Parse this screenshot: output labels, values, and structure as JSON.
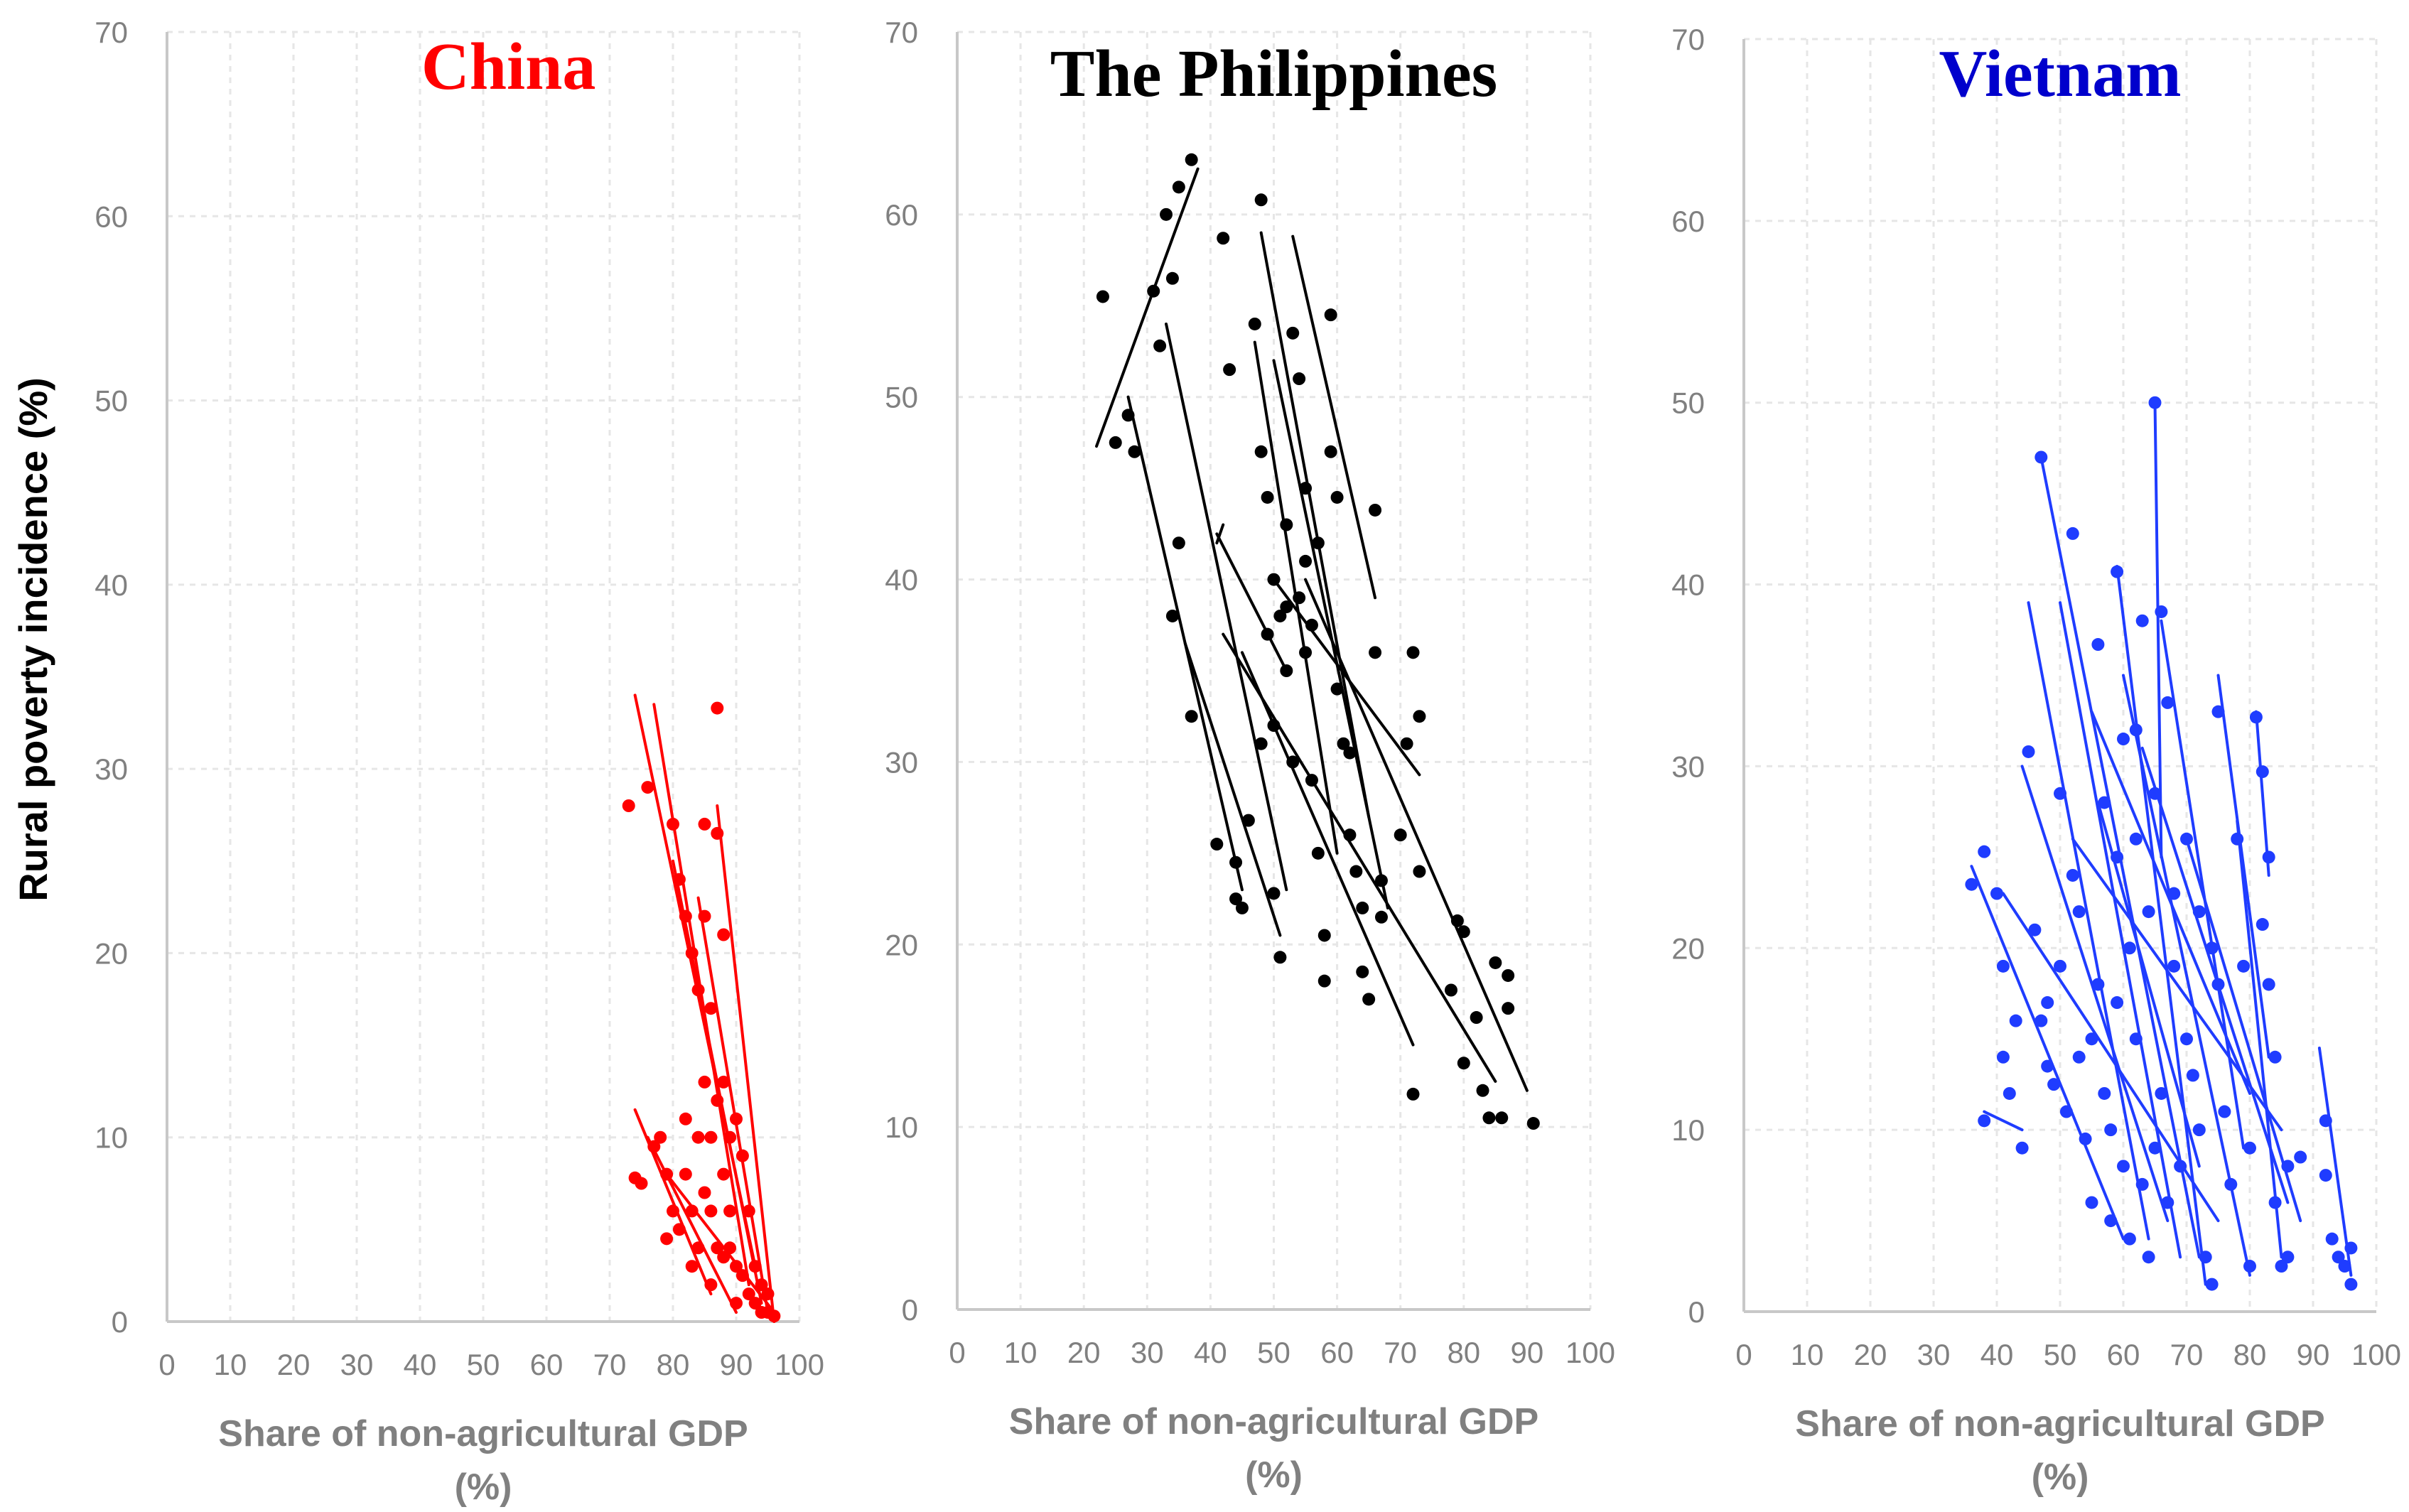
{
  "chart_data": [
    {
      "type": "scatter",
      "title": "China",
      "title_color": "#ff0000",
      "series_color": "#ff0000",
      "xlabel_line1": "Share of non-agricultural GDP",
      "xlabel_line2": "(%)",
      "ylabel": "Rural poverty incidence (%)",
      "xlim": [
        0,
        100
      ],
      "ylim": [
        0,
        70
      ],
      "x_ticks": [
        "0",
        "10",
        "20",
        "30",
        "40",
        "50",
        "60",
        "70",
        "80",
        "90",
        "100"
      ],
      "y_ticks": [
        "0",
        "10",
        "20",
        "30",
        "40",
        "50",
        "60",
        "70"
      ],
      "grid": true,
      "points": [
        [
          73,
          28
        ],
        [
          74,
          7.8
        ],
        [
          75,
          7.5
        ],
        [
          76,
          29
        ],
        [
          77,
          9.5
        ],
        [
          78,
          10
        ],
        [
          79,
          8
        ],
        [
          79,
          4.5
        ],
        [
          80,
          6
        ],
        [
          80,
          27
        ],
        [
          81,
          24
        ],
        [
          81,
          5
        ],
        [
          82,
          22
        ],
        [
          82,
          8
        ],
        [
          83,
          6
        ],
        [
          83,
          20
        ],
        [
          84,
          4
        ],
        [
          84,
          18
        ],
        [
          85,
          22
        ],
        [
          85,
          27
        ],
        [
          85,
          13
        ],
        [
          86,
          17
        ],
        [
          86,
          10
        ],
        [
          86,
          2
        ],
        [
          87,
          12
        ],
        [
          87,
          26.5
        ],
        [
          87,
          33.3
        ],
        [
          88,
          21
        ],
        [
          88,
          13
        ],
        [
          88,
          8
        ],
        [
          89,
          10
        ],
        [
          89,
          6
        ],
        [
          89,
          4
        ],
        [
          90,
          11
        ],
        [
          90,
          3
        ],
        [
          91,
          9
        ],
        [
          91,
          2.5
        ],
        [
          92,
          6
        ],
        [
          92,
          1.5
        ],
        [
          93,
          3
        ],
        [
          93,
          1
        ],
        [
          94,
          2
        ],
        [
          94,
          0.5
        ],
        [
          95,
          1.5
        ],
        [
          95,
          0.5
        ],
        [
          96,
          0.3
        ],
        [
          84,
          10
        ],
        [
          85,
          7
        ],
        [
          86,
          6
        ],
        [
          87,
          4
        ],
        [
          82,
          11
        ],
        [
          83,
          3
        ],
        [
          88,
          3.5
        ],
        [
          90,
          1
        ]
      ],
      "lines": [
        [
          [
            74,
            34
          ],
          [
            93,
            3
          ]
        ],
        [
          [
            77,
            33.5
          ],
          [
            92,
            2
          ]
        ],
        [
          [
            87,
            28
          ],
          [
            96,
            0
          ]
        ],
        [
          [
            74,
            11.5
          ],
          [
            86,
            1.5
          ]
        ],
        [
          [
            76,
            10
          ],
          [
            90,
            0.5
          ]
        ],
        [
          [
            80,
            25
          ],
          [
            94,
            1
          ]
        ],
        [
          [
            84,
            23
          ],
          [
            95,
            0.5
          ]
        ],
        [
          [
            79,
            8
          ],
          [
            96,
            0.5
          ]
        ]
      ]
    },
    {
      "type": "scatter",
      "title": "The Philippines",
      "title_color": "#000000",
      "series_color": "#000000",
      "xlabel_line1": "Share of non-agricultural GDP",
      "xlabel_line2": "(%)",
      "xlim": [
        0,
        100
      ],
      "ylim": [
        0,
        70
      ],
      "x_ticks": [
        "0",
        "10",
        "20",
        "30",
        "40",
        "50",
        "60",
        "70",
        "80",
        "90",
        "100"
      ],
      "y_ticks": [
        "0",
        "10",
        "20",
        "30",
        "40",
        "50",
        "60",
        "70"
      ],
      "grid": true,
      "points": [
        [
          23,
          55.5
        ],
        [
          25,
          47.5
        ],
        [
          27,
          49
        ],
        [
          28,
          47
        ],
        [
          31,
          55.8
        ],
        [
          32,
          52.8
        ],
        [
          33,
          60
        ],
        [
          34,
          56.5
        ],
        [
          35,
          61.5
        ],
        [
          37,
          63
        ],
        [
          35,
          42
        ],
        [
          34,
          38
        ],
        [
          37,
          32.5
        ],
        [
          41,
          25.5
        ],
        [
          42,
          58.7
        ],
        [
          43,
          51.5
        ],
        [
          44,
          24.5
        ],
        [
          44,
          22.5
        ],
        [
          45,
          22
        ],
        [
          46,
          26.8
        ],
        [
          47,
          54
        ],
        [
          48,
          60.8
        ],
        [
          48,
          47
        ],
        [
          49,
          44.5
        ],
        [
          49,
          37
        ],
        [
          50,
          40
        ],
        [
          50,
          22.8
        ],
        [
          51,
          19.3
        ],
        [
          51,
          38
        ],
        [
          52,
          43
        ],
        [
          52,
          35
        ],
        [
          53,
          30
        ],
        [
          53,
          53.5
        ],
        [
          54,
          51
        ],
        [
          55,
          41
        ],
        [
          55,
          36
        ],
        [
          56,
          29
        ],
        [
          57,
          42
        ],
        [
          57,
          25
        ],
        [
          58,
          20.5
        ],
        [
          58,
          18
        ],
        [
          59,
          54.5
        ],
        [
          59,
          47
        ],
        [
          60,
          44.5
        ],
        [
          60,
          34
        ],
        [
          61,
          31
        ],
        [
          62,
          30.5
        ],
        [
          62,
          26
        ],
        [
          63,
          24
        ],
        [
          64,
          22
        ],
        [
          64,
          18.5
        ],
        [
          65,
          17
        ],
        [
          66,
          43.8
        ],
        [
          66,
          36
        ],
        [
          67,
          23.5
        ],
        [
          67,
          21.5
        ],
        [
          70,
          26
        ],
        [
          71,
          31
        ],
        [
          72,
          36
        ],
        [
          72,
          11.8
        ],
        [
          73,
          32.5
        ],
        [
          73,
          24
        ],
        [
          78,
          17.5
        ],
        [
          79,
          21.3
        ],
        [
          80,
          20.7
        ],
        [
          80,
          13.5
        ],
        [
          82,
          16
        ],
        [
          83,
          12
        ],
        [
          84,
          10.5
        ],
        [
          85,
          19
        ],
        [
          86,
          10.5
        ],
        [
          87,
          18.3
        ],
        [
          87,
          16.5
        ],
        [
          91,
          10.2
        ],
        [
          48,
          31
        ],
        [
          50,
          32
        ],
        [
          52,
          38.5
        ],
        [
          54,
          39
        ],
        [
          55,
          45
        ],
        [
          56,
          37.5
        ]
      ],
      "lines": [
        [
          [
            22,
            47.3
          ],
          [
            38,
            62.5
          ]
        ],
        [
          [
            27,
            50
          ],
          [
            45,
            23
          ]
        ],
        [
          [
            33,
            54
          ],
          [
            52,
            23
          ]
        ],
        [
          [
            36,
            36.5
          ],
          [
            51,
            20.5
          ]
        ],
        [
          [
            41,
            42.5
          ],
          [
            52,
            35
          ]
        ],
        [
          [
            48,
            59
          ],
          [
            65,
            27
          ]
        ],
        [
          [
            53,
            58.8
          ],
          [
            66,
            39
          ]
        ],
        [
          [
            45,
            36
          ],
          [
            72,
            14.5
          ]
        ],
        [
          [
            55,
            40
          ],
          [
            90,
            12
          ]
        ],
        [
          [
            50,
            40
          ],
          [
            73,
            29.3
          ]
        ],
        [
          [
            42,
            37
          ],
          [
            85,
            12.5
          ]
        ],
        [
          [
            47,
            53
          ],
          [
            60,
            25
          ]
        ],
        [
          [
            41,
            42
          ],
          [
            42,
            43
          ]
        ],
        [
          [
            50,
            52
          ],
          [
            68,
            22
          ]
        ]
      ]
    },
    {
      "type": "scatter",
      "title": "Vietnam",
      "title_color": "#0000cc",
      "series_color": "#1f3cff",
      "xlabel_line1": "Share of non-agricultural GDP",
      "xlabel_line2": "(%)",
      "xlim": [
        0,
        100
      ],
      "ylim": [
        0,
        70
      ],
      "x_ticks": [
        "0",
        "10",
        "20",
        "30",
        "40",
        "50",
        "60",
        "70",
        "80",
        "90",
        "100"
      ],
      "y_ticks": [
        "0",
        "10",
        "20",
        "30",
        "40",
        "50",
        "60",
        "70"
      ],
      "grid": true,
      "points": [
        [
          36,
          23.5
        ],
        [
          38,
          25.3
        ],
        [
          38,
          10.5
        ],
        [
          40,
          23
        ],
        [
          41,
          14
        ],
        [
          41,
          19
        ],
        [
          42,
          12
        ],
        [
          43,
          16
        ],
        [
          44,
          9
        ],
        [
          45,
          30.8
        ],
        [
          46,
          21
        ],
        [
          47,
          47
        ],
        [
          47,
          16
        ],
        [
          48,
          13.5
        ],
        [
          49,
          12.5
        ],
        [
          50,
          28.5
        ],
        [
          50,
          19
        ],
        [
          51,
          11
        ],
        [
          52,
          42.8
        ],
        [
          52,
          24
        ],
        [
          53,
          22
        ],
        [
          54,
          9.5
        ],
        [
          55,
          15
        ],
        [
          55,
          6
        ],
        [
          56,
          36.7
        ],
        [
          56,
          18
        ],
        [
          57,
          28
        ],
        [
          58,
          10
        ],
        [
          58,
          5
        ],
        [
          59,
          40.7
        ],
        [
          59,
          25
        ],
        [
          60,
          31.5
        ],
        [
          60,
          8
        ],
        [
          61,
          20
        ],
        [
          61,
          4
        ],
        [
          62,
          32
        ],
        [
          62,
          15
        ],
        [
          63,
          38
        ],
        [
          63,
          7
        ],
        [
          64,
          22
        ],
        [
          64,
          3
        ],
        [
          65,
          50
        ],
        [
          65,
          28.5
        ],
        [
          66,
          38.5
        ],
        [
          66,
          12
        ],
        [
          67,
          33.5
        ],
        [
          67,
          6
        ],
        [
          68,
          19
        ],
        [
          69,
          8
        ],
        [
          70,
          26
        ],
        [
          71,
          13
        ],
        [
          72,
          22
        ],
        [
          73,
          3
        ],
        [
          74,
          1.5
        ],
        [
          75,
          33
        ],
        [
          75,
          18
        ],
        [
          76,
          11
        ],
        [
          77,
          7
        ],
        [
          78,
          26
        ],
        [
          79,
          19
        ],
        [
          80,
          9
        ],
        [
          80,
          2.5
        ],
        [
          81,
          32.7
        ],
        [
          82,
          29.7
        ],
        [
          82,
          21.3
        ],
        [
          83,
          25
        ],
        [
          83,
          18
        ],
        [
          84,
          14
        ],
        [
          84,
          6
        ],
        [
          85,
          2.5
        ],
        [
          86,
          8
        ],
        [
          86,
          3
        ],
        [
          88,
          8.5
        ],
        [
          92,
          7.5
        ],
        [
          92,
          10.5
        ],
        [
          93,
          4
        ],
        [
          94,
          3
        ],
        [
          95,
          2.5
        ],
        [
          96,
          1.5
        ],
        [
          96,
          3.5
        ],
        [
          70,
          15
        ],
        [
          72,
          10
        ],
        [
          68,
          23
        ],
        [
          74,
          20
        ],
        [
          62,
          26
        ],
        [
          57,
          12
        ],
        [
          53,
          14
        ],
        [
          48,
          17
        ],
        [
          59,
          17
        ],
        [
          65,
          9
        ]
      ],
      "lines": [
        [
          [
            36,
            24.5
          ],
          [
            60,
            4
          ]
        ],
        [
          [
            38,
            11
          ],
          [
            44,
            10
          ]
        ],
        [
          [
            45,
            39
          ],
          [
            64,
            4
          ]
        ],
        [
          [
            47,
            47
          ],
          [
            72,
            3
          ]
        ],
        [
          [
            50,
            39
          ],
          [
            69,
            3
          ]
        ],
        [
          [
            55,
            33
          ],
          [
            80,
            12
          ]
        ],
        [
          [
            59,
            41
          ],
          [
            73,
            1.5
          ]
        ],
        [
          [
            65,
            50
          ],
          [
            66,
            25
          ]
        ],
        [
          [
            63,
            31
          ],
          [
            86,
            6
          ]
        ],
        [
          [
            66,
            38
          ],
          [
            79,
            9
          ]
        ],
        [
          [
            75,
            35
          ],
          [
            83,
            14
          ]
        ],
        [
          [
            78,
            27
          ],
          [
            85,
            3
          ]
        ],
        [
          [
            81,
            33
          ],
          [
            83,
            24
          ]
        ],
        [
          [
            91,
            14.5
          ],
          [
            96,
            2
          ]
        ],
        [
          [
            41,
            23
          ],
          [
            75,
            5
          ]
        ],
        [
          [
            52,
            26
          ],
          [
            85,
            10
          ]
        ],
        [
          [
            56,
            28
          ],
          [
            72,
            8
          ]
        ],
        [
          [
            60,
            35
          ],
          [
            80,
            2
          ]
        ],
        [
          [
            44,
            30
          ],
          [
            67,
            5
          ]
        ],
        [
          [
            70,
            26
          ],
          [
            88,
            5
          ]
        ]
      ]
    }
  ]
}
